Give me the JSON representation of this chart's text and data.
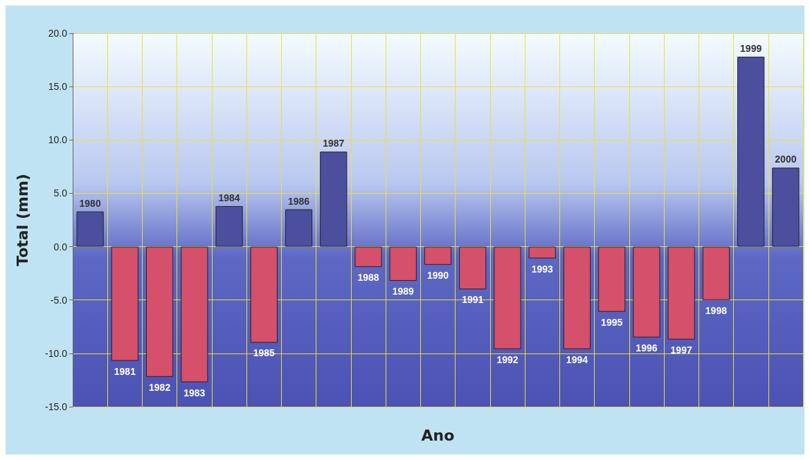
{
  "chart_data": {
    "type": "bar",
    "xlabel": "Ano",
    "ylabel": "Total (mm)",
    "categories": [
      "1980",
      "1981",
      "1982",
      "1983",
      "1984",
      "1985",
      "1986",
      "1987",
      "1988",
      "1989",
      "1990",
      "1991",
      "1992",
      "1993",
      "1994",
      "1995",
      "1996",
      "1997",
      "1998",
      "1999",
      "2000"
    ],
    "values": [
      3.3,
      -10.7,
      -12.2,
      -12.7,
      3.8,
      -9.0,
      3.5,
      8.9,
      -1.9,
      -3.2,
      -1.7,
      -4.0,
      -9.6,
      -1.1,
      -9.6,
      -6.1,
      -8.5,
      -8.7,
      -5.0,
      17.8,
      7.4
    ],
    "colors": [
      "#4b4f9e",
      "#d4506b",
      "#d4506b",
      "#d4506b",
      "#4b4f9e",
      "#d4506b",
      "#4b4f9e",
      "#4b4f9e",
      "#d4506b",
      "#d4506b",
      "#d4506b",
      "#d4506b",
      "#d4506b",
      "#d4506b",
      "#d4506b",
      "#d4506b",
      "#d4506b",
      "#d4506b",
      "#d4506b",
      "#4b4f9e",
      "#4b4f9e"
    ],
    "ylim": [
      -15,
      20
    ],
    "yticks": [
      {
        "value": -15,
        "label": "-15.0"
      },
      {
        "value": -10,
        "label": "-10.0"
      },
      {
        "value": -5,
        "label": "-5.0"
      },
      {
        "value": 0,
        "label": "0.0"
      },
      {
        "value": 5,
        "label": "5.0"
      },
      {
        "value": 10,
        "label": "10.0"
      },
      {
        "value": 15,
        "label": "15.0"
      },
      {
        "value": 20,
        "label": "20.0"
      }
    ],
    "grid": true
  }
}
